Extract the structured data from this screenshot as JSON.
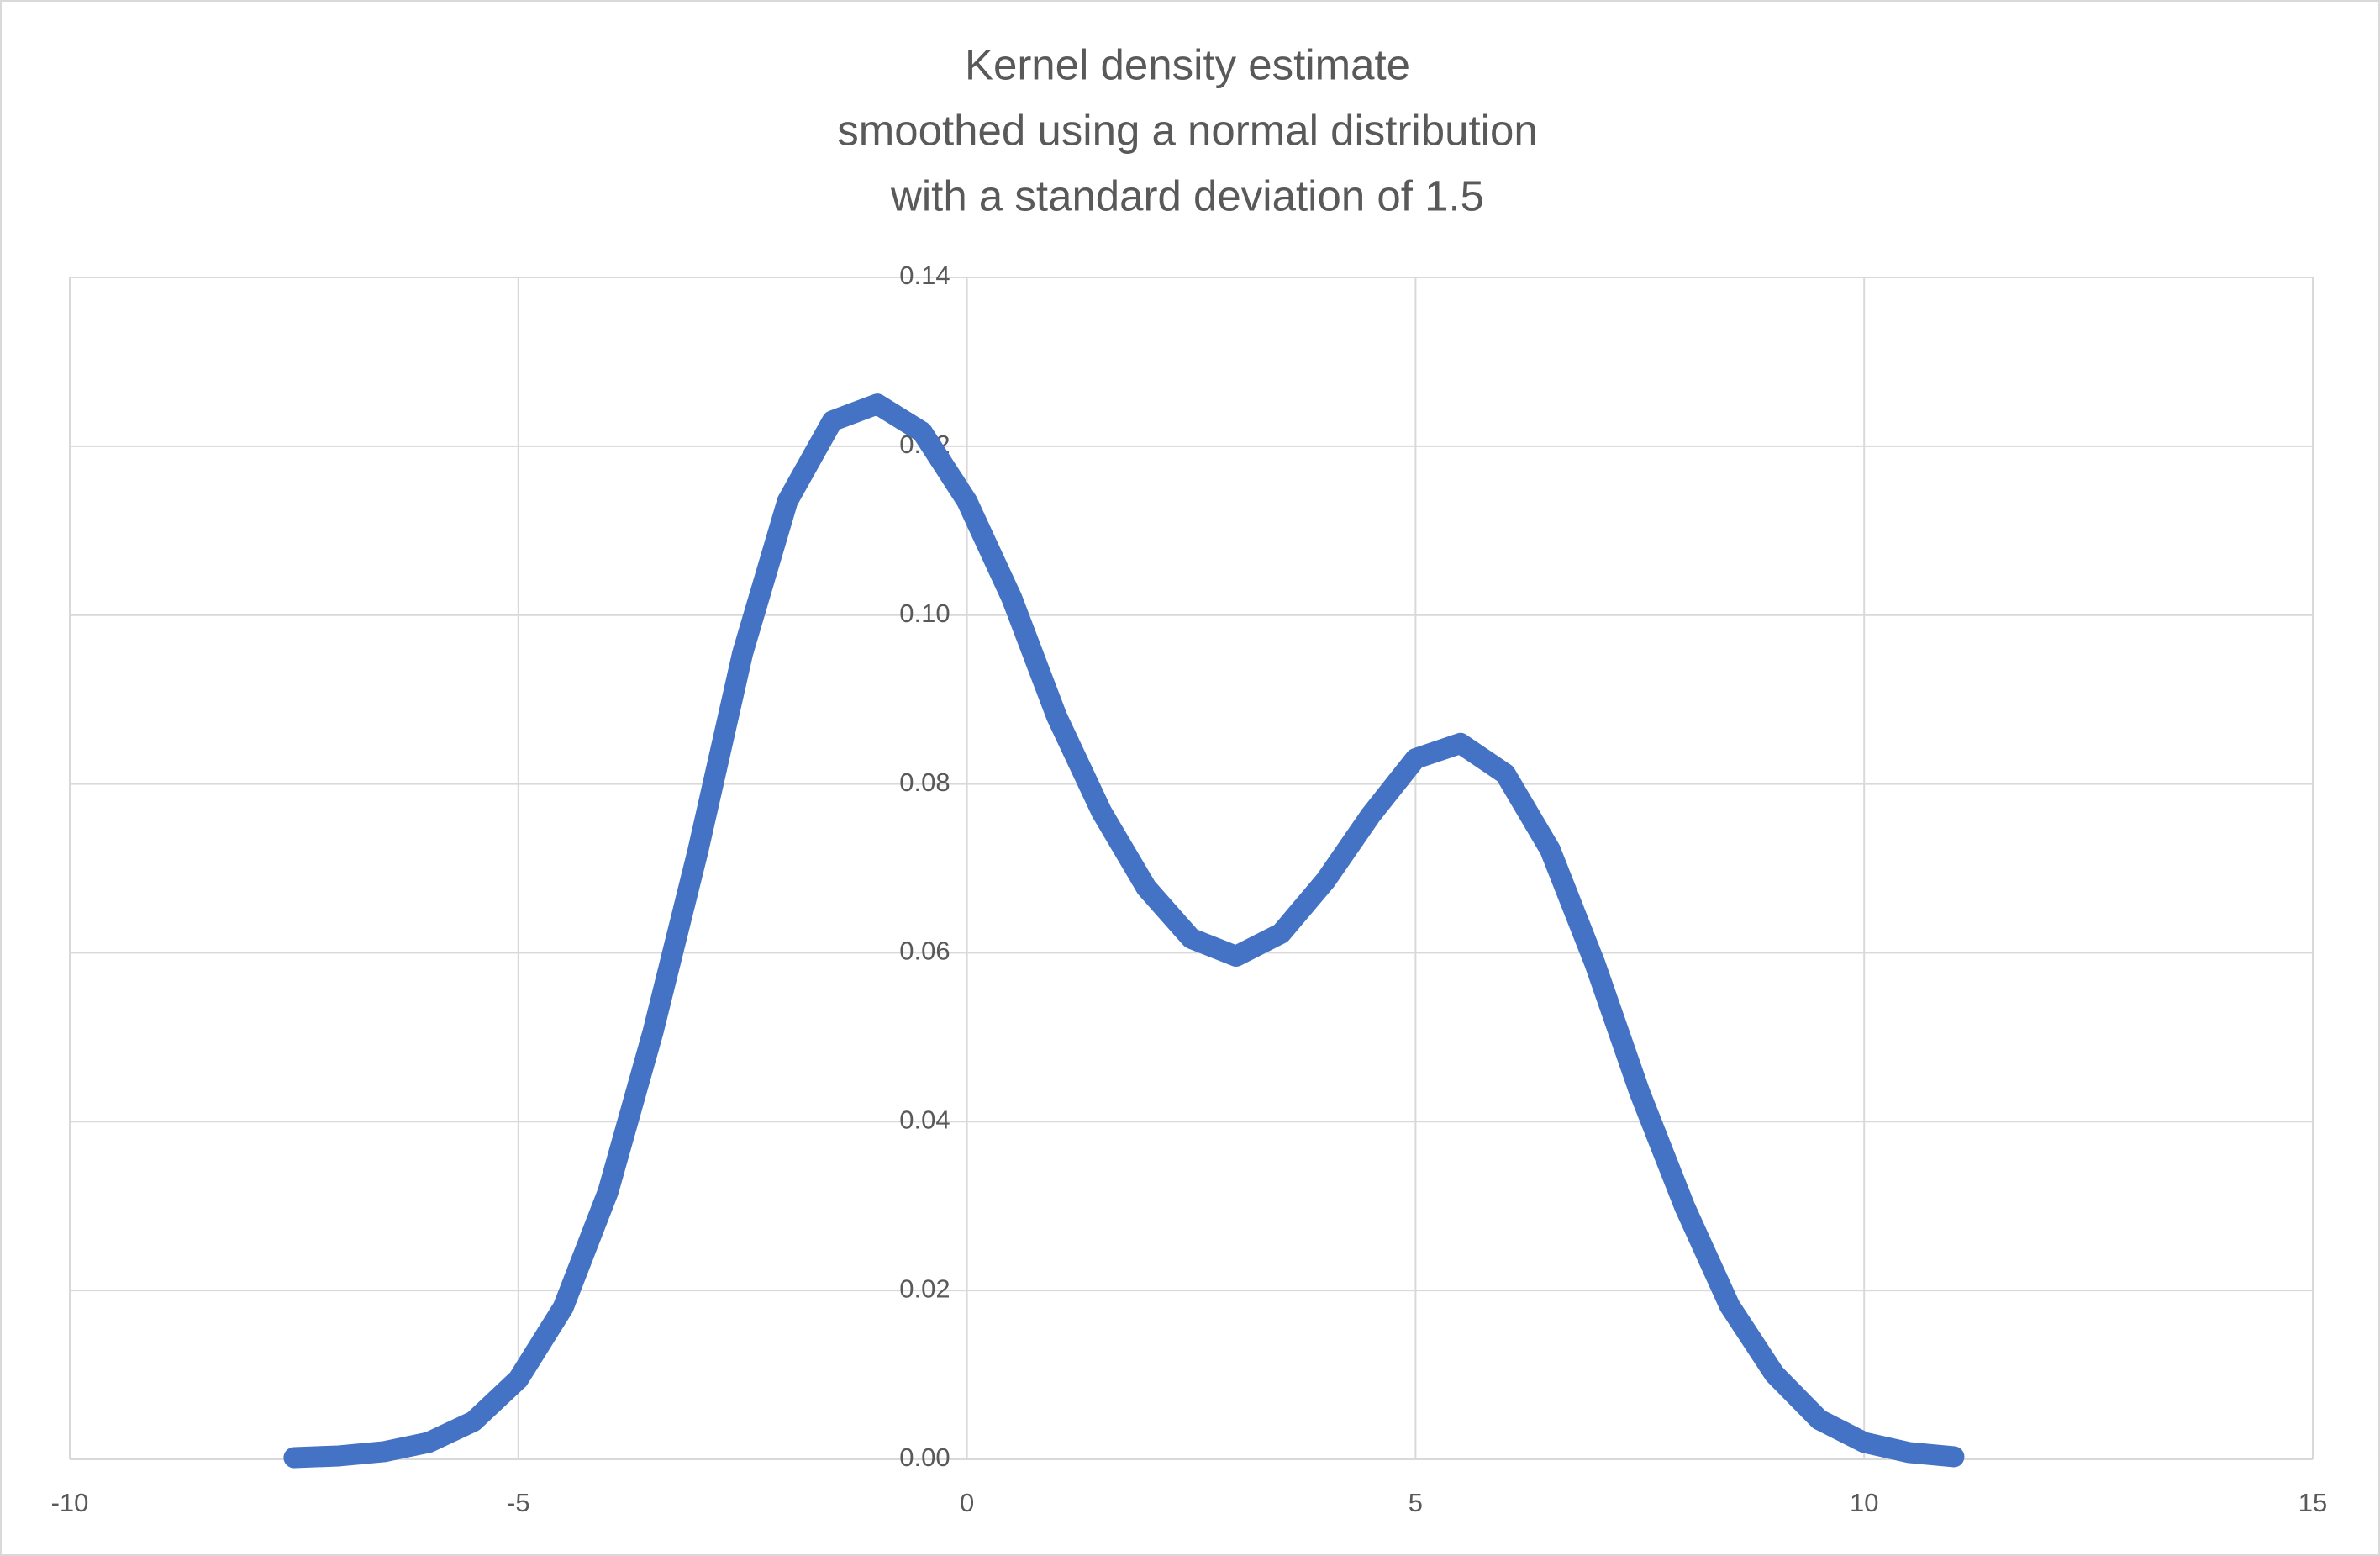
{
  "chart_data": {
    "type": "line",
    "title": [
      "Kernel density estimate",
      "smoothed using a normal distribution",
      "with a standard deviation of 1.5"
    ],
    "x": [
      -7.5,
      -7,
      -6.5,
      -6,
      -5.5,
      -5,
      -4.5,
      -4,
      -3.5,
      -3,
      -2.5,
      -2,
      -1.5,
      -1,
      -0.5,
      0,
      0.5,
      1,
      1.5,
      2,
      2.5,
      3,
      3.5,
      4,
      4.5,
      5,
      5.5,
      6,
      6.5,
      7,
      7.5,
      8,
      8.5,
      9,
      9.5,
      10,
      10.5,
      11
    ],
    "values": [
      0.0002,
      0.0004,
      0.0009,
      0.002,
      0.0045,
      0.0095,
      0.018,
      0.0317,
      0.0506,
      0.072,
      0.0955,
      0.1135,
      0.123,
      0.125,
      0.1217,
      0.1135,
      0.102,
      0.088,
      0.0767,
      0.0677,
      0.0617,
      0.0596,
      0.0623,
      0.0686,
      0.0763,
      0.083,
      0.0848,
      0.0812,
      0.0722,
      0.0587,
      0.0434,
      0.0299,
      0.0182,
      0.0101,
      0.0047,
      0.002,
      0.0008,
      0.0003
    ],
    "color": "#4472c4",
    "xlim": [
      -10,
      15
    ],
    "xticks": [
      -10,
      -5,
      0,
      5,
      10,
      15
    ],
    "ylim": [
      0,
      0.14
    ],
    "yticks": [
      {
        "value": 0,
        "label": "0.00"
      },
      0.02,
      0.04,
      0.06,
      0.08,
      {
        "value": 0.1,
        "label": "0.10"
      },
      0.12,
      0.14
    ],
    "grid": true
  }
}
